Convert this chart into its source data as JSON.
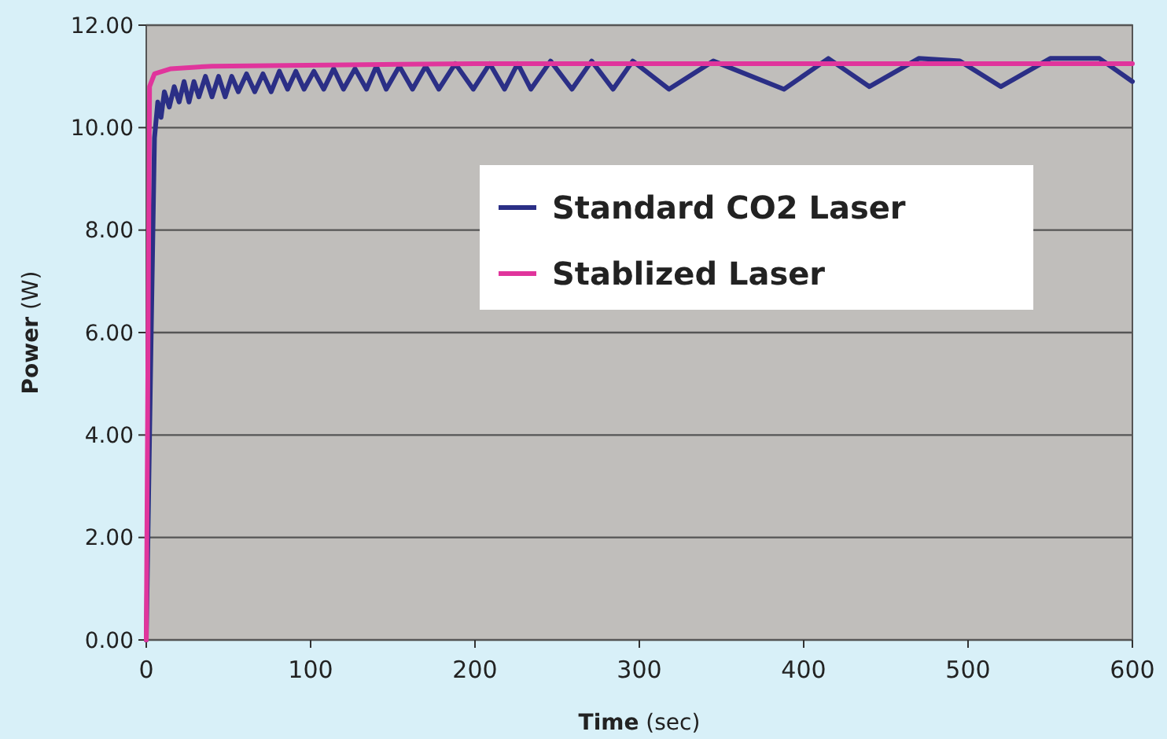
{
  "chart_data": {
    "type": "line",
    "xlabel": "Time (sec)",
    "ylabel": "Power (W)",
    "xlim": [
      0,
      600
    ],
    "xticks": [
      0,
      100,
      200,
      300,
      400,
      500,
      600
    ],
    "ylim": [
      0,
      12
    ],
    "yticks": [
      {
        "value": 0,
        "label": "0.00"
      },
      {
        "value": 2,
        "label": "2.00"
      },
      {
        "value": 4,
        "label": "4.00"
      },
      {
        "value": 6,
        "label": "6.00"
      },
      {
        "value": 8,
        "label": "8.00"
      },
      {
        "value": 10,
        "label": "10.00"
      },
      {
        "value": 12,
        "label": "12.00"
      }
    ],
    "grid": "y",
    "legend": "top right",
    "line_style": "solid",
    "marker": "none",
    "series": [
      {
        "name": "Standard CO2 Laser",
        "color": "#2b2f86",
        "x": [
          0,
          3,
          5,
          7,
          9,
          11,
          14,
          17,
          20,
          23,
          26,
          29,
          32,
          36,
          40,
          44,
          48,
          52,
          56,
          61,
          66,
          71,
          76,
          81,
          86,
          91,
          96,
          102,
          108,
          114,
          120,
          127,
          134,
          140,
          146,
          154,
          162,
          170,
          178,
          188,
          199,
          209,
          218,
          226,
          234,
          246,
          259,
          271,
          284,
          296,
          318,
          345,
          388,
          415,
          440,
          470,
          495,
          520,
          550,
          580,
          600
        ],
        "values": [
          0,
          6,
          9.8,
          10.5,
          10.2,
          10.7,
          10.4,
          10.8,
          10.5,
          10.9,
          10.5,
          10.9,
          10.6,
          11,
          10.6,
          11,
          10.6,
          11,
          10.7,
          11.05,
          10.7,
          11.05,
          10.7,
          11.1,
          10.75,
          11.1,
          10.75,
          11.1,
          10.75,
          11.15,
          10.75,
          11.15,
          10.75,
          11.2,
          10.75,
          11.2,
          10.75,
          11.2,
          10.75,
          11.25,
          10.75,
          11.25,
          10.75,
          11.25,
          10.75,
          11.3,
          10.75,
          11.3,
          10.75,
          11.3,
          10.75,
          11.3,
          10.75,
          11.35,
          10.8,
          11.35,
          11.3,
          10.8,
          11.35,
          11.35,
          10.9
        ]
      },
      {
        "name": "Stablized Laser",
        "color": "#e0359c",
        "x": [
          0,
          2,
          5,
          15,
          40,
          200,
          600
        ],
        "values": [
          0,
          10.8,
          11.05,
          11.15,
          11.2,
          11.25,
          11.25
        ]
      }
    ]
  }
}
